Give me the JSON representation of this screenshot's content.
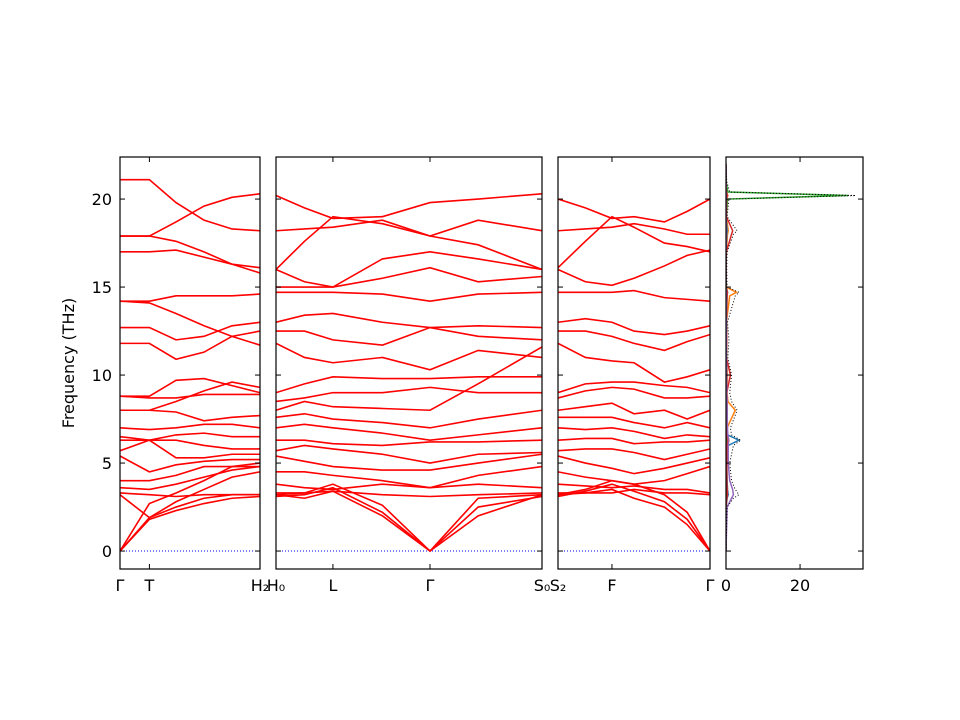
{
  "chart_data": [
    {
      "type": "band",
      "color": "#ff0000",
      "ylabel": "Frequency (THz)",
      "zero_line": {
        "value": 0,
        "color": "#0000ff"
      },
      "xlim": [
        0,
        1
      ],
      "xticks": [
        {
          "value": 0,
          "label": "Γ"
        },
        {
          "value": 0.21,
          "label": "T"
        },
        {
          "value": 1,
          "label": "H₂"
        }
      ],
      "ylim": [
        -1.02,
        22.39
      ],
      "yticks": [
        0,
        5,
        10,
        15,
        20
      ],
      "show_ytick_labels": true,
      "x": [
        0,
        0.21,
        0.4,
        0.6,
        0.8,
        1.0
      ],
      "series": [
        {
          "values": [
            21.1,
            21.1,
            19.8,
            18.8,
            18.3,
            18.2
          ]
        },
        {
          "values": [
            17.9,
            17.9,
            18.7,
            19.6,
            20.1,
            20.3
          ]
        },
        {
          "values": [
            17.9,
            17.9,
            17.6,
            17.0,
            16.3,
            15.8
          ]
        },
        {
          "values": [
            17.0,
            17.0,
            17.1,
            16.7,
            16.3,
            16.1
          ]
        },
        {
          "values": [
            14.2,
            14.2,
            14.5,
            14.5,
            14.5,
            14.6
          ]
        },
        {
          "values": [
            14.2,
            14.1,
            13.5,
            12.8,
            12.2,
            11.7
          ]
        },
        {
          "values": [
            12.7,
            12.7,
            12.0,
            12.2,
            12.8,
            13.0
          ]
        },
        {
          "values": [
            11.8,
            11.8,
            10.9,
            11.3,
            12.2,
            12.5
          ]
        },
        {
          "values": [
            8.8,
            8.8,
            9.7,
            9.8,
            9.4,
            9.0
          ]
        },
        {
          "values": [
            8.8,
            8.7,
            8.7,
            8.9,
            8.9,
            8.9
          ]
        },
        {
          "values": [
            8.0,
            8.0,
            8.5,
            9.1,
            9.6,
            9.3
          ]
        },
        {
          "values": [
            8.0,
            8.0,
            7.9,
            7.4,
            7.6,
            7.7
          ]
        },
        {
          "values": [
            7.0,
            6.9,
            7.0,
            7.2,
            7.2,
            7.0
          ]
        },
        {
          "values": [
            6.5,
            6.3,
            6.6,
            6.7,
            6.5,
            6.5
          ]
        },
        {
          "values": [
            6.3,
            6.3,
            6.3,
            6.0,
            5.8,
            5.8
          ]
        },
        {
          "values": [
            5.7,
            6.3,
            5.3,
            5.3,
            5.5,
            5.5
          ]
        },
        {
          "values": [
            5.4,
            4.5,
            4.9,
            5.1,
            5.2,
            5.2
          ]
        },
        {
          "values": [
            4.0,
            4.0,
            4.3,
            4.8,
            4.8,
            4.8
          ]
        },
        {
          "values": [
            3.6,
            3.5,
            3.8,
            4.2,
            4.6,
            4.8
          ]
        },
        {
          "values": [
            3.3,
            3.2,
            3.1,
            3.2,
            3.2,
            3.2
          ]
        },
        {
          "values": [
            3.2,
            1.9,
            2.5,
            3.0,
            3.2,
            3.2
          ]
        },
        {
          "values": [
            0,
            1.8,
            2.3,
            2.7,
            3.0,
            3.1
          ]
        },
        {
          "values": [
            0,
            1.9,
            2.8,
            3.5,
            4.2,
            4.5
          ]
        },
        {
          "values": [
            0,
            2.7,
            3.3,
            4.0,
            4.8,
            5.0
          ]
        }
      ]
    },
    {
      "type": "band",
      "color": "#ff0000",
      "zero_line": {
        "value": 0,
        "color": "#0000ff"
      },
      "xlim": [
        0,
        1
      ],
      "xticks": [
        {
          "value": 0,
          "label": "H₀"
        },
        {
          "value": 0.214,
          "label": "L"
        },
        {
          "value": 0.579,
          "label": "Γ"
        },
        {
          "value": 1,
          "label": "S₀"
        }
      ],
      "ylim": [
        -1.02,
        22.39
      ],
      "yticks": [
        0,
        5,
        10,
        15,
        20
      ],
      "show_ytick_labels": false,
      "x": [
        0,
        0.107,
        0.214,
        0.4,
        0.579,
        0.76,
        1.0
      ],
      "series": [
        {
          "values": [
            20.2,
            19.5,
            18.9,
            19.0,
            19.8,
            20.0,
            20.3
          ]
        },
        {
          "values": [
            18.2,
            18.3,
            18.4,
            18.8,
            17.9,
            18.8,
            18.2
          ]
        },
        {
          "values": [
            16.0,
            17.6,
            19.0,
            18.6,
            17.9,
            17.4,
            16.0
          ]
        },
        {
          "values": [
            16.0,
            15.3,
            15.0,
            16.6,
            17.0,
            16.6,
            16.0
          ]
        },
        {
          "values": [
            15.0,
            15.0,
            15.0,
            15.5,
            16.1,
            15.3,
            15.6
          ]
        },
        {
          "values": [
            14.7,
            14.7,
            14.7,
            14.6,
            14.2,
            14.6,
            14.7
          ]
        },
        {
          "values": [
            13.0,
            13.4,
            13.5,
            13.0,
            12.7,
            12.8,
            12.7
          ]
        },
        {
          "values": [
            12.5,
            12.5,
            12.0,
            11.7,
            12.7,
            12.2,
            12.0
          ]
        },
        {
          "values": [
            11.8,
            11.0,
            10.7,
            11.0,
            10.3,
            11.4,
            11.0
          ]
        },
        {
          "values": [
            9.0,
            9.5,
            9.9,
            9.8,
            9.8,
            9.9,
            9.9
          ]
        },
        {
          "values": [
            8.5,
            8.7,
            9.0,
            9.0,
            9.3,
            9.0,
            9.0
          ]
        },
        {
          "values": [
            8.0,
            8.5,
            8.2,
            8.1,
            8.0,
            9.5,
            11.6
          ]
        },
        {
          "values": [
            7.6,
            7.8,
            7.5,
            7.3,
            7.0,
            7.5,
            8.0
          ]
        },
        {
          "values": [
            7.0,
            7.2,
            7.0,
            6.7,
            6.3,
            6.6,
            7.0
          ]
        },
        {
          "values": [
            6.3,
            6.3,
            6.1,
            6.0,
            6.2,
            6.2,
            6.3
          ]
        },
        {
          "values": [
            5.7,
            6.0,
            5.8,
            5.5,
            5.0,
            5.5,
            5.6
          ]
        },
        {
          "values": [
            5.4,
            5.1,
            4.8,
            4.6,
            4.6,
            5.0,
            5.5
          ]
        },
        {
          "values": [
            4.5,
            4.5,
            4.3,
            4.0,
            3.6,
            4.3,
            4.8
          ]
        },
        {
          "values": [
            3.8,
            3.6,
            3.5,
            3.8,
            3.6,
            3.8,
            3.6
          ]
        },
        {
          "values": [
            3.3,
            3.3,
            3.4,
            3.2,
            3.1,
            3.2,
            3.3
          ]
        },
        {
          "values": [
            3.2,
            3.0,
            3.4,
            2.0,
            0,
            2.0,
            3.2
          ]
        },
        {
          "values": [
            3.1,
            3.2,
            3.6,
            2.2,
            0,
            2.5,
            3.1
          ]
        },
        {
          "values": [
            3.2,
            3.3,
            3.8,
            2.6,
            0,
            3.0,
            3.2
          ]
        }
      ]
    },
    {
      "type": "band",
      "color": "#ff0000",
      "zero_line": {
        "value": 0,
        "color": "#0000ff"
      },
      "xlim": [
        0,
        1
      ],
      "xticks": [
        {
          "value": 0,
          "label": "S₂"
        },
        {
          "value": 0.355,
          "label": "F"
        },
        {
          "value": 1,
          "label": "Γ"
        }
      ],
      "ylim": [
        -1.02,
        22.39
      ],
      "yticks": [
        0,
        5,
        10,
        15,
        20
      ],
      "show_ytick_labels": false,
      "x": [
        0,
        0.18,
        0.355,
        0.5,
        0.7,
        0.85,
        1.0
      ],
      "series": [
        {
          "values": [
            20.0,
            19.5,
            18.9,
            19.0,
            18.7,
            19.3,
            20.0
          ]
        },
        {
          "values": [
            18.2,
            18.3,
            18.4,
            18.6,
            18.3,
            18.0,
            18.0
          ]
        },
        {
          "values": [
            16.1,
            17.6,
            19.0,
            18.4,
            17.5,
            17.3,
            17.0
          ]
        },
        {
          "values": [
            16.0,
            15.3,
            15.1,
            15.5,
            16.2,
            16.8,
            17.1
          ]
        },
        {
          "values": [
            14.7,
            14.7,
            14.7,
            14.8,
            14.4,
            14.3,
            14.2
          ]
        },
        {
          "values": [
            13.0,
            13.2,
            13.0,
            12.5,
            12.3,
            12.5,
            12.8
          ]
        },
        {
          "values": [
            12.5,
            12.5,
            12.2,
            11.8,
            11.4,
            11.9,
            12.3
          ]
        },
        {
          "values": [
            11.8,
            11.0,
            10.8,
            10.7,
            9.6,
            9.9,
            10.3
          ]
        },
        {
          "values": [
            9.0,
            9.5,
            9.6,
            9.6,
            9.4,
            9.3,
            9.0
          ]
        },
        {
          "values": [
            8.7,
            9.1,
            9.3,
            9.2,
            8.7,
            8.7,
            8.8
          ]
        },
        {
          "values": [
            8.0,
            8.2,
            8.4,
            7.8,
            8.0,
            7.5,
            8.0
          ]
        },
        {
          "values": [
            7.6,
            7.6,
            7.6,
            7.3,
            7.0,
            7.3,
            7.0
          ]
        },
        {
          "values": [
            7.0,
            6.9,
            7.0,
            6.8,
            6.4,
            6.6,
            6.5
          ]
        },
        {
          "values": [
            6.3,
            6.4,
            6.4,
            6.1,
            6.2,
            6.2,
            6.3
          ]
        },
        {
          "values": [
            5.7,
            5.8,
            5.8,
            5.6,
            5.2,
            5.5,
            5.8
          ]
        },
        {
          "values": [
            5.4,
            5.0,
            4.7,
            4.4,
            4.7,
            5.0,
            5.3
          ]
        },
        {
          "values": [
            4.5,
            4.2,
            4.0,
            3.8,
            4.0,
            4.4,
            4.8
          ]
        },
        {
          "values": [
            3.8,
            3.7,
            3.6,
            3.7,
            3.5,
            3.5,
            3.3
          ]
        },
        {
          "values": [
            3.3,
            3.3,
            3.3,
            3.5,
            3.3,
            3.3,
            3.2
          ]
        },
        {
          "values": [
            3.2,
            3.3,
            3.5,
            3.0,
            2.5,
            1.5,
            0
          ]
        },
        {
          "values": [
            3.1,
            3.4,
            3.8,
            3.4,
            2.8,
            1.8,
            0
          ]
        },
        {
          "values": [
            3.2,
            3.5,
            4.0,
            3.8,
            3.2,
            2.2,
            0
          ]
        }
      ]
    },
    {
      "type": "dos",
      "xlim": [
        0,
        37
      ],
      "xticks": [
        0,
        20
      ],
      "ylim": [
        -1.02,
        22.39
      ],
      "yticks": [
        0,
        5,
        10,
        15,
        20
      ],
      "show_ytick_labels": false,
      "frequencies": [
        0,
        2.5,
        3,
        3.2,
        3.5,
        4,
        5,
        6,
        6.3,
        6.6,
        7,
        8,
        8.5,
        9,
        10,
        11,
        12,
        13,
        14.5,
        14.7,
        15,
        16,
        17,
        18,
        18.2,
        19,
        20,
        20.2,
        20.4,
        21,
        22
      ],
      "series": [
        {
          "color": "#2ca02c",
          "values": [
            0,
            0,
            0.2,
            0.3,
            0.2,
            0.1,
            0.1,
            0.2,
            0.3,
            0.2,
            0.1,
            0.3,
            0.2,
            0.1,
            0.2,
            0.1,
            0.2,
            0.1,
            0.3,
            0.4,
            0.1,
            0,
            0.1,
            0.3,
            0.4,
            0.1,
            0.4,
            33,
            0.5,
            0,
            0
          ]
        },
        {
          "color": "#ff7f0e",
          "values": [
            0,
            0,
            0.3,
            0.5,
            0.4,
            0.3,
            0.2,
            0.5,
            0.8,
            0.4,
            0.3,
            2.5,
            0.5,
            0.3,
            0.4,
            0.1,
            0.2,
            0.1,
            1.0,
            2.8,
            0.1,
            0,
            0.1,
            0.4,
            0.6,
            0.1,
            0.1,
            0.5,
            0.1,
            0,
            0
          ]
        },
        {
          "color": "#1f77b4",
          "values": [
            0,
            0,
            0.3,
            0.6,
            0.4,
            0.3,
            0.2,
            0.6,
            3.5,
            0.4,
            0.3,
            0.3,
            0.2,
            0.2,
            0.2,
            0.1,
            0.1,
            0.1,
            0.2,
            0.2,
            0,
            0,
            0,
            0.2,
            0.3,
            0,
            0.1,
            0.3,
            0.1,
            0,
            0
          ]
        },
        {
          "color": "#d62728",
          "values": [
            0,
            0,
            0.2,
            0.4,
            0.3,
            0.2,
            0.2,
            0.3,
            0.5,
            0.2,
            0.2,
            0.3,
            0.3,
            0.2,
            1.2,
            0.1,
            0.2,
            0.1,
            0.3,
            0.4,
            0,
            0,
            0.1,
            1.5,
            1.8,
            0.1,
            0.1,
            0.4,
            0.1,
            0,
            0
          ]
        },
        {
          "color": "#9467bd",
          "values": [
            0,
            0.3,
            1.5,
            2.0,
            1.8,
            1.0,
            0.6,
            0.6,
            0.7,
            0.5,
            0.4,
            0.3,
            0.3,
            0.2,
            0.2,
            0.1,
            0.1,
            0.1,
            0.1,
            0.1,
            0,
            0,
            0,
            0.1,
            0.1,
            0,
            0,
            0.1,
            0,
            0,
            0
          ]
        },
        {
          "color": "#000000",
          "dotted": true,
          "values": [
            0,
            0.3,
            2.0,
            3.5,
            2.5,
            1.5,
            1.0,
            2.0,
            4.0,
            1.5,
            1.2,
            3.0,
            1.5,
            1.0,
            1.5,
            0.5,
            0.8,
            0.4,
            2.5,
            3.5,
            0.3,
            0.2,
            0.3,
            2.0,
            3.0,
            0.3,
            0.8,
            35,
            1,
            0.2,
            0
          ]
        }
      ]
    }
  ]
}
